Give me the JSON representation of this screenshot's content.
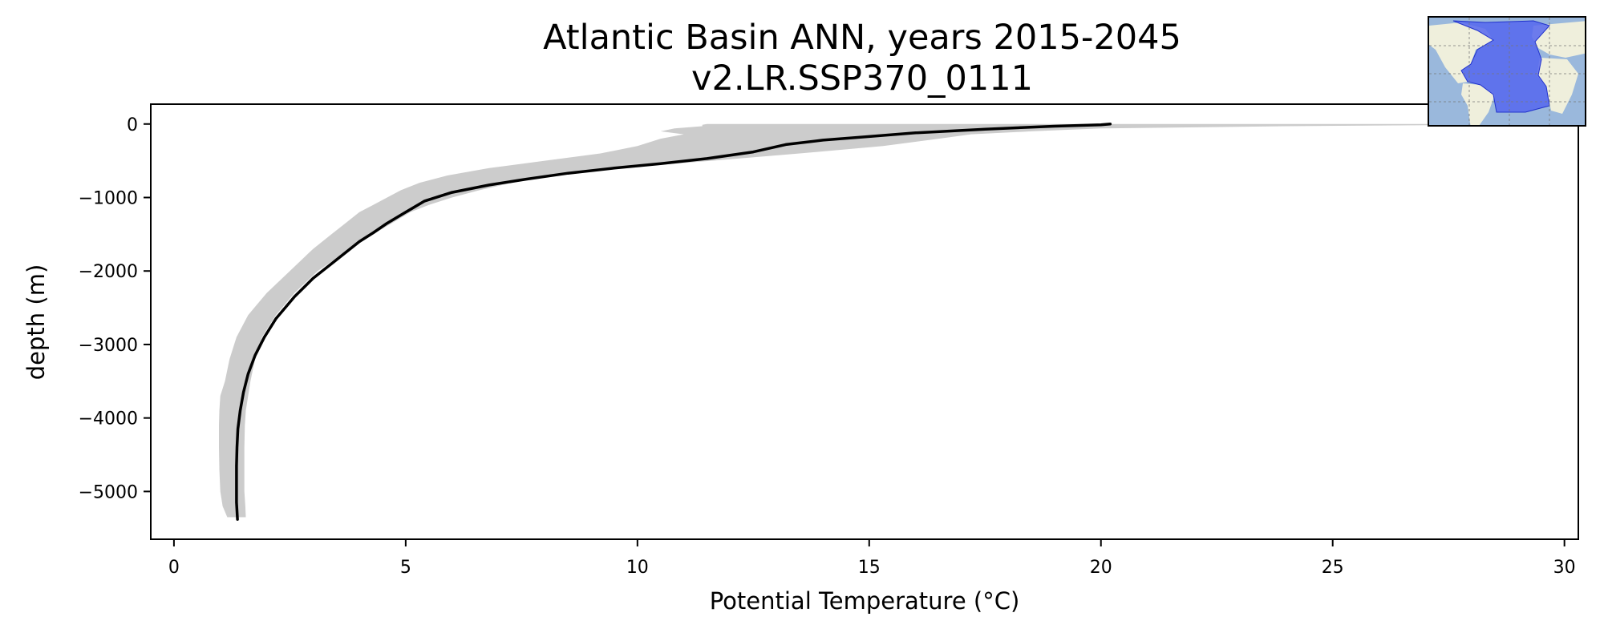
{
  "chart_data": {
    "type": "line",
    "title": "Atlantic Basin ANN, years 2015-2045",
    "subtitle": "v2.LR.SSP370_0111",
    "xlabel": "Potential Temperature (°C)",
    "ylabel": "depth (m)",
    "xlim": [
      -0.5,
      30.3
    ],
    "ylim": [
      -5650,
      270
    ],
    "xticks": [
      0,
      5,
      10,
      15,
      20,
      25,
      30
    ],
    "yticks": [
      0,
      -1000,
      -2000,
      -3000,
      -4000,
      -5000
    ],
    "xtick_labels": [
      "0",
      "5",
      "10",
      "15",
      "20",
      "25",
      "30"
    ],
    "ytick_labels": [
      "0",
      "−1000",
      "−2000",
      "−3000",
      "−4000",
      "−5000"
    ],
    "grid": false,
    "series": [
      {
        "color": "#000000",
        "x": [
          20.2,
          20.0,
          19.0,
          17.5,
          16.0,
          15.0,
          14.0,
          13.2,
          12.5,
          11.5,
          10.5,
          9.5,
          8.5,
          7.6,
          6.8,
          6.0,
          5.4,
          5.0,
          4.6,
          4.3,
          4.0,
          3.5,
          3.0,
          2.6,
          2.2,
          1.95,
          1.75,
          1.6,
          1.5,
          1.43,
          1.38,
          1.36,
          1.35,
          1.35,
          1.35,
          1.37
        ],
        "y": [
          0,
          -10,
          -30,
          -70,
          -120,
          -170,
          -220,
          -280,
          -380,
          -470,
          -540,
          -600,
          -670,
          -750,
          -830,
          -930,
          -1050,
          -1200,
          -1350,
          -1480,
          -1600,
          -1850,
          -2100,
          -2350,
          -2650,
          -2900,
          -3150,
          -3400,
          -3650,
          -3900,
          -4150,
          -4400,
          -4650,
          -4900,
          -5150,
          -5380
        ]
      }
    ],
    "range_band": {
      "color": "#cccccc",
      "y": [
        0,
        -10,
        -30,
        -60,
        -100,
        -140,
        -200,
        -300,
        -400,
        -500,
        -600,
        -700,
        -800,
        -900,
        -1000,
        -1100,
        -1200,
        -1350,
        -1500,
        -1700,
        -2000,
        -2300,
        -2600,
        -2900,
        -3200,
        -3500,
        -3700,
        -3900,
        -4100,
        -4400,
        -4700,
        -5000,
        -5200,
        -5350
      ],
      "x_min": [
        11.5,
        11.4,
        11.4,
        10.8,
        10.5,
        11.0,
        10.5,
        10.0,
        9.2,
        8.0,
        6.8,
        5.9,
        5.3,
        4.9,
        4.6,
        4.3,
        4.0,
        3.7,
        3.4,
        3.0,
        2.5,
        2.0,
        1.6,
        1.35,
        1.2,
        1.1,
        1.0,
        0.98,
        0.97,
        0.97,
        0.98,
        1.0,
        1.05,
        1.15
      ],
      "x_max": [
        30.3,
        28.5,
        24.0,
        20.0,
        18.5,
        17.2,
        16.5,
        15.3,
        13.5,
        11.6,
        9.6,
        8.2,
        7.3,
        6.6,
        6.0,
        5.5,
        5.1,
        4.7,
        4.3,
        3.8,
        3.1,
        2.6,
        2.2,
        1.9,
        1.75,
        1.65,
        1.6,
        1.55,
        1.53,
        1.52,
        1.52,
        1.52,
        1.54,
        1.55
      ]
    },
    "inset_map": {
      "region": "Atlantic Basin",
      "ocean_color": "#9ab8dc",
      "land_color": "#efefdc",
      "region_color": "#5566ee"
    }
  }
}
